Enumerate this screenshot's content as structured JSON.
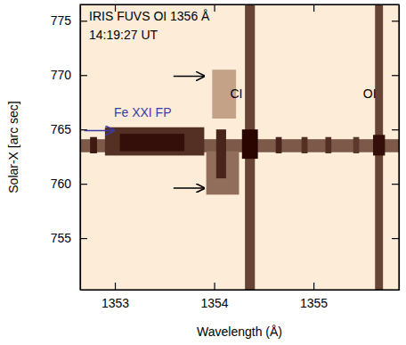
{
  "chart_data": {
    "type": "image",
    "x_label": "Wavelength (Å)",
    "y_label": "Solar-X [arc sec]",
    "xlim": [
      1352.65,
      1355.86
    ],
    "ylim": [
      750.25,
      776.5
    ],
    "xticks": [
      1353,
      1354,
      1355
    ],
    "yticks": [
      755,
      760,
      765,
      770,
      775
    ],
    "cells": [
      {
        "x": [
          1352.65,
          1355.86
        ],
        "y": [
          762.9,
          764.1
        ],
        "value": 0.6
      },
      {
        "x": [
          1352.9,
          1353.9
        ],
        "y": [
          762.6,
          765.2
        ],
        "value": 0.8
      },
      {
        "x": [
          1353.05,
          1353.7
        ],
        "y": [
          763.0,
          764.6
        ],
        "value": 0.95
      },
      {
        "x": [
          1354.31,
          1354.41
        ],
        "y": [
          750.25,
          776.5
        ],
        "value": 0.7
      },
      {
        "x": [
          1354.28,
          1354.44
        ],
        "y": [
          762.3,
          765.0
        ],
        "value": 1.0
      },
      {
        "x": [
          1355.62,
          1355.7
        ],
        "y": [
          750.25,
          776.5
        ],
        "value": 0.7
      },
      {
        "x": [
          1355.6,
          1355.72
        ],
        "y": [
          762.6,
          764.5
        ],
        "value": 0.95
      },
      {
        "x": [
          1353.92,
          1354.25
        ],
        "y": [
          759.0,
          763.0
        ],
        "value": 0.5
      },
      {
        "x": [
          1354.02,
          1354.12
        ],
        "y": [
          760.5,
          765.0
        ],
        "value": 0.85
      },
      {
        "x": [
          1353.98,
          1354.22
        ],
        "y": [
          766.0,
          770.5
        ],
        "value": 0.25
      },
      {
        "x": [
          1352.75,
          1352.82
        ],
        "y": [
          762.8,
          764.3
        ],
        "value": 0.9
      },
      {
        "x": [
          1354.62,
          1354.68
        ],
        "y": [
          762.8,
          764.3
        ],
        "value": 0.85
      },
      {
        "x": [
          1354.88,
          1354.94
        ],
        "y": [
          762.8,
          764.3
        ],
        "value": 0.8
      },
      {
        "x": [
          1355.12,
          1355.18
        ],
        "y": [
          762.8,
          764.3
        ],
        "value": 0.8
      },
      {
        "x": [
          1355.4,
          1355.46
        ],
        "y": [
          762.8,
          764.3
        ],
        "value": 0.75
      }
    ],
    "annotations": [
      {
        "text": "IRIS FUVS OI 1356 Å",
        "x": 1352.74,
        "y": 775.0,
        "color": "#000000"
      },
      {
        "text": "14:19:27 UT",
        "x": 1352.74,
        "y": 773.3,
        "color": "#000000"
      },
      {
        "text": "Fe XXI FP",
        "x": 1352.99,
        "y": 766.2,
        "color": "#3b3ba8"
      },
      {
        "text": "CI",
        "x": 1354.16,
        "y": 767.9,
        "color": "#000000"
      },
      {
        "text": "OI",
        "x": 1355.5,
        "y": 767.9,
        "color": "#000000"
      }
    ],
    "arrows": [
      {
        "x0": 1353.59,
        "x1": 1353.9,
        "y": 769.9,
        "color": "#000000"
      },
      {
        "x0": 1353.59,
        "x1": 1353.9,
        "y": 759.6,
        "color": "#000000"
      },
      {
        "x0": 1352.69,
        "x1": 1352.99,
        "y": 764.9,
        "color": "#3b3ba8"
      }
    ]
  }
}
